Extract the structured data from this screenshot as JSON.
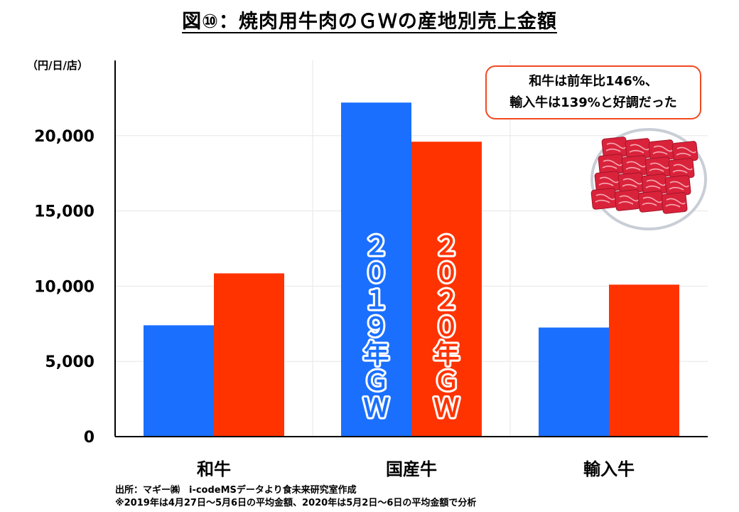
{
  "title": "図⑩：焼肉用牛肉のＧＷの産地別売上金額",
  "chart_data": {
    "type": "bar",
    "unit_label": "（円/日/店）",
    "categories": [
      "和牛",
      "国産牛",
      "輸入牛"
    ],
    "series": [
      {
        "name": "２０１９年ＧＷ",
        "color": "#1a6fff",
        "values": [
          7400,
          22200,
          7250
        ]
      },
      {
        "name": "２０２０年ＧＷ",
        "color": "#ff3300",
        "values": [
          10850,
          19600,
          10100
        ]
      }
    ],
    "ylim": [
      0,
      25000
    ],
    "yticks": [
      0,
      5000,
      10000,
      15000,
      20000
    ],
    "ytick_labels": [
      "0",
      "5,000",
      "10,000",
      "15,000",
      "20,000"
    ],
    "grid": true
  },
  "callout": {
    "line1": "和牛は前年比146%、",
    "line2": "輸入牛は139%と好調だった"
  },
  "illustration": {
    "icon": "meat-plate-icon"
  },
  "footer": {
    "source": "出所：マギー㈱　i-codeMSデータより食未来研究室作成",
    "note": "※2019年は4月27日～5月6日の平均金額、2020年は5月2日～6日の平均金額で分析"
  }
}
